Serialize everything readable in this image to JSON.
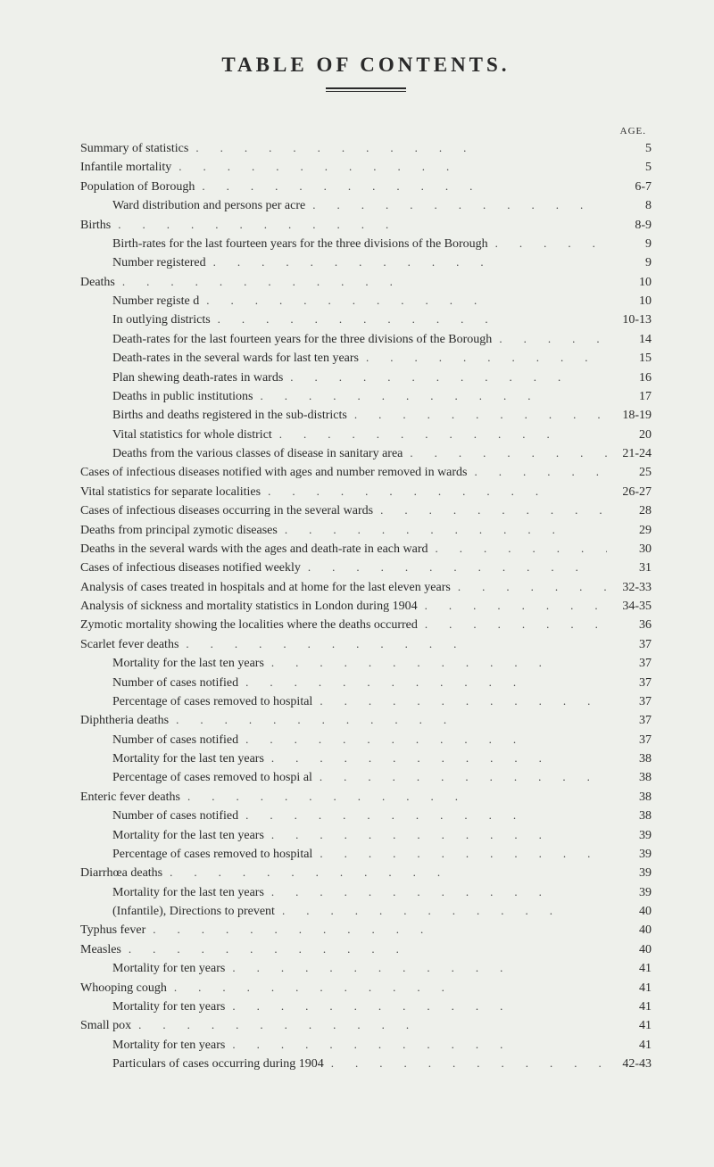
{
  "title": "TABLE OF CONTENTS.",
  "pageHeader": "AGE.",
  "colors": {
    "background": "#eef0eb",
    "text": "#2a2a2a",
    "dots": "#444444"
  },
  "typography": {
    "title_fontsize": 23,
    "title_letter_spacing": 4,
    "line_fontsize": 14,
    "line_height": 1.42
  },
  "entries": [
    {
      "label": "Summary of statistics",
      "page": "5",
      "indent": 0
    },
    {
      "label": "Infantile mortality",
      "page": "5",
      "indent": 0
    },
    {
      "label": "Population of Borough",
      "page": "6-7",
      "indent": 0
    },
    {
      "label": "Ward distribution and persons per acre",
      "page": "8",
      "indent": 1
    },
    {
      "label": "Births",
      "page": "8-9",
      "indent": 0
    },
    {
      "label": "Birth-rates for the last fourteen years for the three divisions of the Borough",
      "page": "9",
      "indent": 1
    },
    {
      "label": "Number registered",
      "page": "9",
      "indent": 1
    },
    {
      "label": "Deaths",
      "page": "10",
      "indent": 0
    },
    {
      "label": "Number registe d",
      "page": "10",
      "indent": 1
    },
    {
      "label": "In outlying districts",
      "page": "10-13",
      "indent": 1
    },
    {
      "label": "Death-rates for the last fourteen years for the three divisions of the Borough",
      "page": "14",
      "indent": 1
    },
    {
      "label": "Death-rates in the several wards for last ten years",
      "page": "15",
      "indent": 1
    },
    {
      "label": "Plan shewing death-rates in wards",
      "page": "16",
      "indent": 1
    },
    {
      "label": "Deaths in public institutions",
      "page": "17",
      "indent": 1
    },
    {
      "label": "Births and deaths registered in the sub-districts",
      "page": "18-19",
      "indent": 1
    },
    {
      "label": "Vital statistics for whole district",
      "page": "20",
      "indent": 1
    },
    {
      "label": "Deaths from the various classes of disease in sanitary area",
      "page": "21-24",
      "indent": 1
    },
    {
      "label": "Cases of infectious diseases notified with ages and number removed in wards",
      "page": "25",
      "indent": 0
    },
    {
      "label": "Vital statistics for separate localities",
      "page": "26-27",
      "indent": 0
    },
    {
      "label": "Cases of infectious diseases occurring in the several wards",
      "page": "28",
      "indent": 0
    },
    {
      "label": "Deaths from principal zymotic diseases",
      "page": "29",
      "indent": 0
    },
    {
      "label": "Deaths in the several wards with the ages and death-rate in each ward",
      "page": "30",
      "indent": 0
    },
    {
      "label": "Cases of infectious diseases notified weekly",
      "page": "31",
      "indent": 0
    },
    {
      "label": "Analysis of cases treated in hospitals and at home for the last eleven years",
      "page": "32-33",
      "indent": 0
    },
    {
      "label": "Analysis of sickness and mortality statistics in London during 1904",
      "page": "34-35",
      "indent": 0
    },
    {
      "label": "Zymotic mortality showing the localities where the deaths occurred",
      "page": "36",
      "indent": 0
    },
    {
      "label": "Scarlet fever deaths",
      "page": "37",
      "indent": 0
    },
    {
      "label": "Mortality for the last ten years",
      "page": "37",
      "indent": 1
    },
    {
      "label": "Number of cases notified",
      "page": "37",
      "indent": 1
    },
    {
      "label": "Percentage of cases removed to hospital",
      "page": "37",
      "indent": 1
    },
    {
      "label": "Diphtheria deaths",
      "page": "37",
      "indent": 0
    },
    {
      "label": "Number of cases notified",
      "page": "37",
      "indent": 1
    },
    {
      "label": "Mortality for the last ten years",
      "page": "38",
      "indent": 1
    },
    {
      "label": "Percentage of cases removed to hospi al",
      "page": "38",
      "indent": 1
    },
    {
      "label": "Enteric fever deaths",
      "page": "38",
      "indent": 0
    },
    {
      "label": "Number of cases notified",
      "page": "38",
      "indent": 1
    },
    {
      "label": "Mortality for the last ten years",
      "page": "39",
      "indent": 1
    },
    {
      "label": "Percentage of cases removed to hospital",
      "page": "39",
      "indent": 1
    },
    {
      "label": "Diarrhœa deaths",
      "page": "39",
      "indent": 0
    },
    {
      "label": "Mortality for the last ten years",
      "page": "39",
      "indent": 1
    },
    {
      "label": "(Infantile), Directions to prevent",
      "page": "40",
      "indent": 1
    },
    {
      "label": "Typhus fever",
      "page": "40",
      "indent": 0
    },
    {
      "label": "Measles",
      "page": "40",
      "indent": 0
    },
    {
      "label": "Mortality for ten years",
      "page": "41",
      "indent": 1
    },
    {
      "label": "Whooping cough",
      "page": "41",
      "indent": 0
    },
    {
      "label": "Mortality for ten years",
      "page": "41",
      "indent": 1
    },
    {
      "label": "Small pox",
      "page": "41",
      "indent": 0
    },
    {
      "label": "Mortality for ten years",
      "page": "41",
      "indent": 1
    },
    {
      "label": "Particulars of cases occurring during 1904",
      "page": "42-43",
      "indent": 1
    }
  ]
}
